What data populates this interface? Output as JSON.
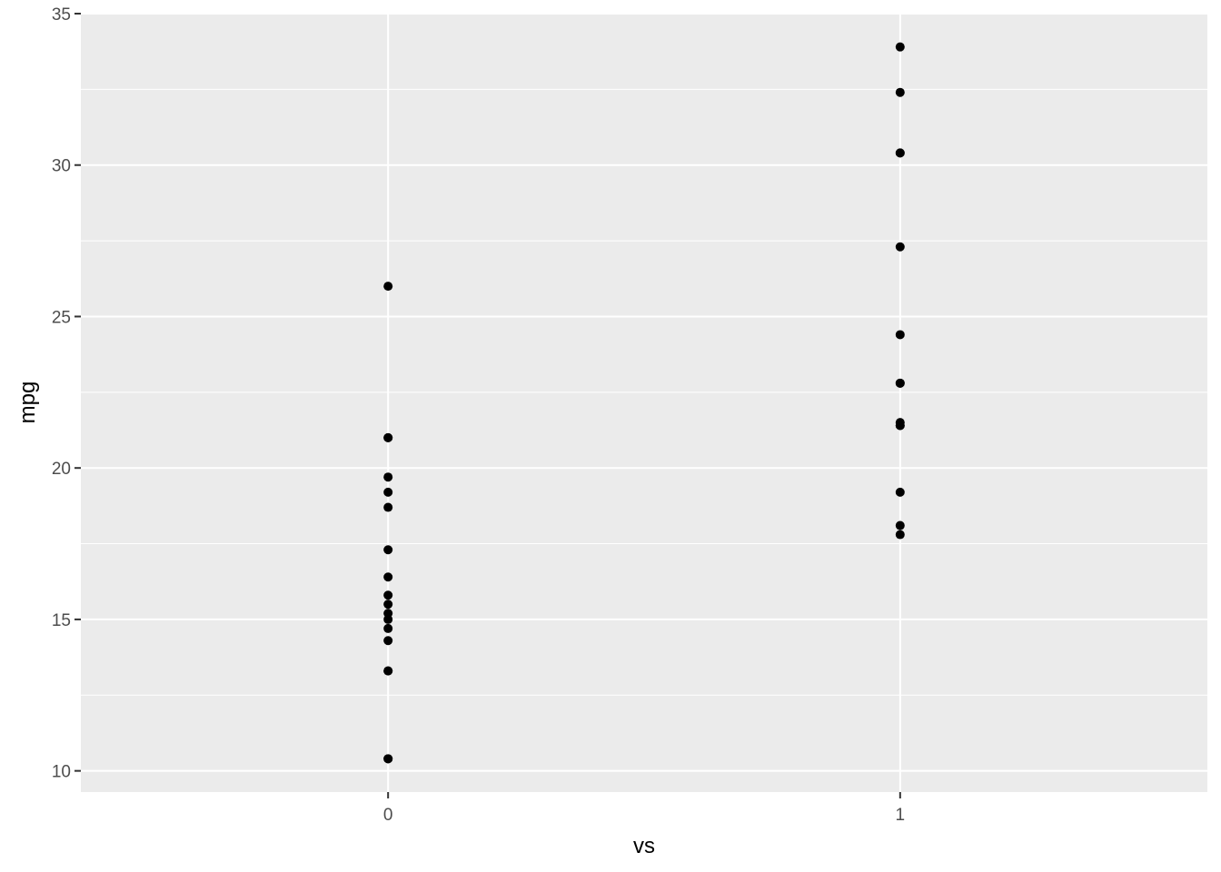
{
  "chart_data": {
    "type": "scatter",
    "title": "",
    "xlabel": "vs",
    "ylabel": "mpg",
    "x_ticks": [
      "0",
      "1"
    ],
    "y_ticks": [
      "10",
      "15",
      "20",
      "25",
      "30",
      "35"
    ],
    "xlim": [
      -0.6,
      1.6
    ],
    "ylim": [
      9.3,
      35.0
    ],
    "grid": true,
    "legend": "none",
    "colors": {
      "panel_background": "#EBEBEB",
      "grid": "#FFFFFF",
      "point": "#000000",
      "tick_label": "#4D4D4D"
    },
    "series": [
      {
        "x": [
          0,
          0,
          0,
          0,
          0,
          0,
          0,
          0,
          0,
          0,
          0,
          0,
          0,
          0,
          0,
          0,
          0,
          0
        ],
        "y": [
          26.0,
          21.0,
          21.0,
          19.7,
          19.2,
          18.7,
          17.3,
          16.4,
          15.8,
          15.5,
          15.2,
          15.0,
          14.7,
          14.3,
          13.3,
          13.3,
          10.4,
          10.4
        ]
      },
      {
        "x": [
          1,
          1,
          1,
          1,
          1,
          1,
          1,
          1,
          1,
          1,
          1,
          1,
          1,
          1
        ],
        "y": [
          33.9,
          32.4,
          30.4,
          30.4,
          27.3,
          24.4,
          22.8,
          22.8,
          21.5,
          21.4,
          21.4,
          19.2,
          18.1,
          17.8
        ]
      }
    ]
  }
}
